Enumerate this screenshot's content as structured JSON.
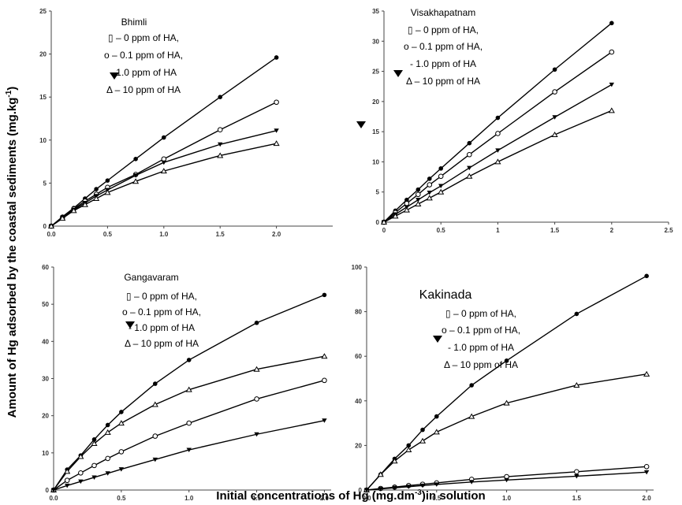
{
  "axis_labels": {
    "y": {
      "text": "Amount of Hg adsorbed by the coastal sediments (mg.kg",
      "sup": "-1",
      "after": ")"
    },
    "x": {
      "text": "Initial concentrations of Hg (mg.dm",
      "sup": "-3",
      "after": ")in solution"
    }
  },
  "chart_data": [
    {
      "type": "line",
      "title": "Bhimli",
      "legend": [
        "▯ – 0 ppm of HA,",
        "o – 0.1 ppm of HA,",
        "- 1.0 ppm of HA",
        "Δ – 10 ppm of HA"
      ],
      "x": [
        0,
        0.1,
        0.2,
        0.3,
        0.4,
        0.5,
        0.75,
        1.0,
        1.5,
        2.0
      ],
      "xlim": [
        0,
        2.5
      ],
      "xticks": [
        {
          "value": 0,
          "label": "0.0"
        },
        0.5,
        {
          "value": 1,
          "label": "1.0"
        },
        1.5,
        {
          "value": 2,
          "label": "2.0"
        }
      ],
      "ylim": [
        0,
        25
      ],
      "yticks": [
        0,
        5,
        10,
        15,
        20,
        25
      ],
      "series": [
        {
          "marker": "circle-filled",
          "color": "#000000",
          "values": [
            0,
            1.1,
            2.1,
            3.2,
            4.3,
            5.3,
            7.8,
            10.3,
            15,
            19.6
          ]
        },
        {
          "marker": "circle-open",
          "color": "#000000",
          "values": [
            0,
            1,
            2,
            2.9,
            3.7,
            4.5,
            6,
            7.8,
            11.2,
            14.4
          ]
        },
        {
          "marker": "triangle-down",
          "color": "#000000",
          "values": [
            0,
            1,
            1.9,
            2.7,
            3.5,
            4.2,
            5.9,
            7.4,
            9.5,
            11.1
          ]
        },
        {
          "marker": "triangle-open",
          "color": "#000000",
          "values": [
            0,
            0.9,
            1.8,
            2.5,
            3.2,
            3.9,
            5.2,
            6.4,
            8.2,
            9.6
          ]
        }
      ]
    },
    {
      "type": "line",
      "title": "Visakhapatnam",
      "legend": [
        "▯ – 0 ppm of HA,",
        "o – 0.1 ppm of HA,",
        "- 1.0 ppm of HA",
        "Δ – 10 ppm of HA"
      ],
      "x": [
        0,
        0.1,
        0.2,
        0.3,
        0.4,
        0.5,
        0.75,
        1.0,
        1.5,
        2.0
      ],
      "xlim": [
        0,
        2.5
      ],
      "xticks": [
        0,
        0.5,
        1,
        1.5,
        2,
        2.5
      ],
      "ylim": [
        0,
        35
      ],
      "yticks": [
        0,
        5,
        10,
        15,
        20,
        25,
        30,
        35
      ],
      "series": [
        {
          "marker": "circle-filled",
          "color": "#000000",
          "values": [
            0,
            1.9,
            3.7,
            5.4,
            7.2,
            8.9,
            13.1,
            17.3,
            25.3,
            33
          ]
        },
        {
          "marker": "circle-open",
          "color": "#000000",
          "values": [
            0,
            1.6,
            3.1,
            4.6,
            6.2,
            7.6,
            11.2,
            14.7,
            21.6,
            28.2
          ]
        },
        {
          "marker": "triangle-down",
          "color": "#000000",
          "values": [
            0,
            1.3,
            2.5,
            3.7,
            4.9,
            6,
            9,
            11.9,
            17.4,
            22.8
          ]
        },
        {
          "marker": "triangle-open",
          "color": "#000000",
          "values": [
            0,
            1,
            2,
            3,
            4,
            5,
            7.6,
            10,
            14.5,
            18.5
          ]
        }
      ]
    },
    {
      "type": "line",
      "title": "Gangavaram",
      "legend": [
        "▯ – 0 ppm of HA,",
        "o – 0.1 ppm of HA,",
        "- 1.0 ppm of HA",
        "Δ – 10 ppm of HA"
      ],
      "x": [
        0,
        0.1,
        0.2,
        0.3,
        0.4,
        0.5,
        0.75,
        1.0,
        1.5,
        2.0
      ],
      "xlim": [
        0,
        2.05
      ],
      "xticks": [
        {
          "value": 0,
          "label": "0.0"
        },
        0.5,
        {
          "value": 1,
          "label": "1.0"
        },
        1.5,
        {
          "value": 2,
          "label": "2.0"
        }
      ],
      "ylim": [
        0,
        60
      ],
      "yticks": [
        0,
        10,
        20,
        30,
        40,
        50,
        60
      ],
      "series": [
        {
          "marker": "circle-filled",
          "color": "#000000",
          "values": [
            0,
            5.5,
            9.3,
            13.6,
            17.5,
            21,
            28.6,
            35,
            45,
            52.5
          ]
        },
        {
          "marker": "triangle-open",
          "color": "#000000",
          "values": [
            0,
            5,
            9,
            12.5,
            15.5,
            18,
            23,
            27,
            32.5,
            36
          ]
        },
        {
          "marker": "circle-open",
          "color": "#000000",
          "values": [
            0,
            2.6,
            4.6,
            6.6,
            8.5,
            10.3,
            14.5,
            18,
            24.5,
            29.5
          ]
        },
        {
          "marker": "triangle-down",
          "color": "#000000",
          "values": [
            0,
            1.2,
            2.3,
            3.4,
            4.5,
            5.6,
            8.2,
            10.8,
            15,
            18.7
          ]
        }
      ]
    },
    {
      "type": "line",
      "title": "Kakinada",
      "legend": [
        "▯ – 0 ppm of HA,",
        "o – 0.1 ppm of HA,",
        "- 1.0 ppm of HA",
        "Δ – 10 ppm of HA"
      ],
      "x": [
        0,
        0.1,
        0.2,
        0.3,
        0.4,
        0.5,
        0.75,
        1.0,
        1.5,
        2.0
      ],
      "xlim": [
        0,
        2.05
      ],
      "xticks": [
        {
          "value": 0,
          "label": "0.0"
        },
        0.5,
        {
          "value": 1,
          "label": "1.0"
        },
        1.5,
        {
          "value": 2,
          "label": "2.0"
        }
      ],
      "ylim": [
        0,
        100
      ],
      "yticks": [
        0,
        20,
        40,
        60,
        80,
        100
      ],
      "series": [
        {
          "marker": "circle-filled",
          "color": "#000000",
          "values": [
            0,
            7,
            14,
            20,
            27,
            33,
            47,
            58,
            79,
            96
          ]
        },
        {
          "marker": "triangle-open",
          "color": "#000000",
          "values": [
            0,
            7,
            13,
            18,
            22,
            26,
            33,
            39,
            47,
            52
          ]
        },
        {
          "marker": "circle-open",
          "color": "#000000",
          "values": [
            0,
            0.7,
            1.3,
            2,
            2.6,
            3.2,
            4.8,
            6,
            8.2,
            10.5
          ]
        },
        {
          "marker": "triangle-down",
          "color": "#000000",
          "values": [
            0,
            0.5,
            1,
            1.5,
            2,
            2.5,
            3.6,
            4.5,
            6.2,
            8
          ]
        }
      ]
    }
  ]
}
